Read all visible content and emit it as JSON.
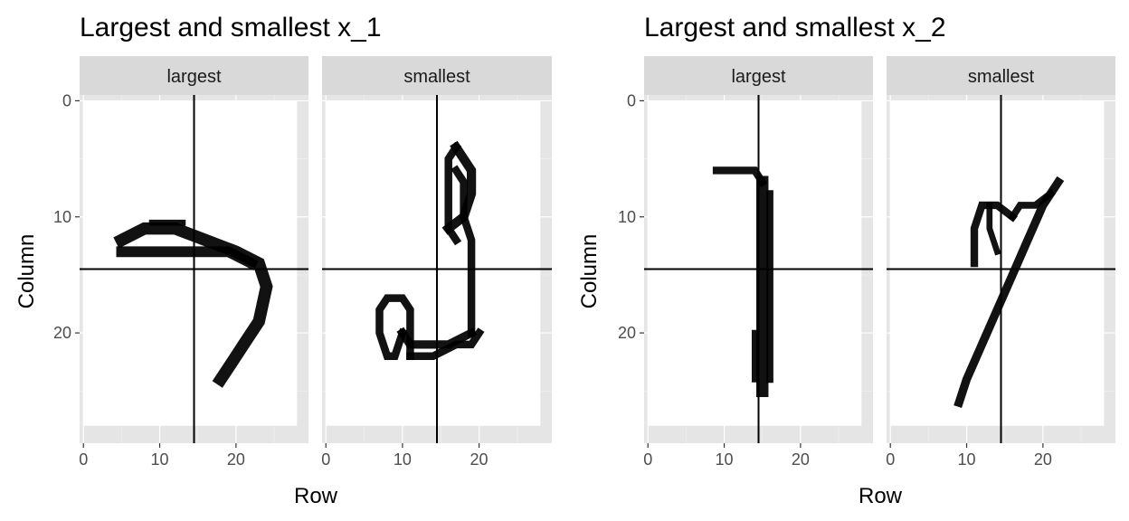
{
  "chart_data": [
    {
      "type": "heatmap",
      "title": "Largest and smallest x_1",
      "xlabel": "Row",
      "ylabel": "Column",
      "xlim": [
        -0.5,
        29.5
      ],
      "ylim": [
        -0.5,
        29.5
      ],
      "y_reversed": true,
      "x_ticks": [
        0,
        10,
        20
      ],
      "y_ticks": [
        0,
        10,
        20
      ],
      "colors": {
        "panel": "#e5e5e5",
        "strip": "#d9d9d9",
        "ink": "#000000",
        "background": "#ffffff"
      },
      "panels": [
        {
          "facet": "largest",
          "vline": 14.5,
          "hline": 14.5,
          "strokes": [
            {
              "points": [
                [
                  5,
                  12
                ],
                [
                  8,
                  11
                ],
                [
                  12,
                  11
                ],
                [
                  16,
                  12
                ],
                [
                  20,
                  13
                ],
                [
                  23,
                  14
                ],
                [
                  24,
                  16
                ],
                [
                  23,
                  19
                ],
                [
                  21,
                  21
                ],
                [
                  19,
                  23
                ],
                [
                  18,
                  24
                ]
              ],
              "width": 1.6
            },
            {
              "points": [
                [
                  5,
                  13
                ],
                [
                  9,
                  13
                ],
                [
                  14,
                  13
                ],
                [
                  19,
                  13
                ],
                [
                  22,
                  14
                ]
              ],
              "width": 1.4
            },
            {
              "points": [
                [
                  9,
                  10.5
                ],
                [
                  13,
                  10.5
                ]
              ],
              "width": 0.8
            }
          ]
        },
        {
          "facet": "smallest",
          "vline": 14.5,
          "hline": 14.5,
          "strokes": [
            {
              "points": [
                [
                  17,
                  4
                ],
                [
                  18,
                  5
                ],
                [
                  19,
                  6
                ],
                [
                  19,
                  8
                ],
                [
                  18,
                  10
                ],
                [
                  16,
                  11
                ]
              ],
              "width": 1.2
            },
            {
              "points": [
                [
                  17,
                  4
                ],
                [
                  16,
                  5
                ],
                [
                  16,
                  7
                ],
                [
                  16,
                  9
                ],
                [
                  16,
                  11
                ],
                [
                  17,
                  12
                ]
              ],
              "width": 1.0
            },
            {
              "points": [
                [
                  17,
                  6
                ],
                [
                  18,
                  7
                ],
                [
                  18,
                  10
                ],
                [
                  19,
                  12
                ],
                [
                  19,
                  15
                ],
                [
                  19,
                  18
                ],
                [
                  19,
                  20
                ]
              ],
              "width": 1.0
            },
            {
              "points": [
                [
                  19,
                  20
                ],
                [
                  16,
                  21
                ],
                [
                  13,
                  21
                ],
                [
                  11,
                  21
                ],
                [
                  10,
                  20
                ]
              ],
              "width": 1.1
            },
            {
              "points": [
                [
                  10,
                  20
                ],
                [
                  9,
                  22
                ],
                [
                  8,
                  22
                ],
                [
                  7,
                  20
                ],
                [
                  7,
                  18
                ],
                [
                  8,
                  17
                ],
                [
                  10,
                  17
                ],
                [
                  11,
                  18
                ],
                [
                  11,
                  20
                ],
                [
                  11,
                  22
                ]
              ],
              "width": 1.0
            },
            {
              "points": [
                [
                  11,
                  22
                ],
                [
                  14,
                  22
                ],
                [
                  17,
                  21
                ],
                [
                  19,
                  21
                ],
                [
                  20,
                  20
                ]
              ],
              "width": 1.0
            }
          ]
        }
      ]
    },
    {
      "type": "heatmap",
      "title": "Largest and smallest x_2",
      "xlabel": "Row",
      "ylabel": "Column",
      "xlim": [
        -0.5,
        29.5
      ],
      "ylim": [
        -0.5,
        29.5
      ],
      "y_reversed": true,
      "x_ticks": [
        0,
        10,
        20
      ],
      "y_ticks": [
        0,
        10,
        20
      ],
      "colors": {
        "panel": "#e5e5e5",
        "strip": "#d9d9d9",
        "ink": "#000000",
        "background": "#ffffff"
      },
      "panels": [
        {
          "facet": "largest",
          "vline": 14.5,
          "hline": 14.5,
          "strokes": [
            {
              "points": [
                [
                  9,
                  6
                ],
                [
                  12,
                  6
                ],
                [
                  14,
                  6
                ],
                [
                  15,
                  7
                ]
              ],
              "width": 1.0
            },
            {
              "points": [
                [
                  15,
                  7
                ],
                [
                  15,
                  12
                ],
                [
                  15,
                  17
                ],
                [
                  15,
                  22
                ],
                [
                  15,
                  25
                ]
              ],
              "width": 1.6
            },
            {
              "points": [
                [
                  16,
                  8
                ],
                [
                  16,
                  14
                ],
                [
                  16,
                  20
                ],
                [
                  16,
                  24
                ]
              ],
              "width": 0.9
            },
            {
              "points": [
                [
                  14,
                  20
                ],
                [
                  14,
                  24
                ]
              ],
              "width": 0.8
            }
          ]
        },
        {
          "facet": "smallest",
          "vline": 14.5,
          "hline": 14.5,
          "strokes": [
            {
              "points": [
                [
                  22,
                  7
                ],
                [
                  20,
                  9
                ],
                [
                  18,
                  12
                ],
                [
                  16,
                  15
                ],
                [
                  14,
                  18
                ],
                [
                  12,
                  21
                ],
                [
                  10,
                  24
                ],
                [
                  9,
                  26
                ]
              ],
              "width": 1.1
            },
            {
              "points": [
                [
                  11,
                  14
                ],
                [
                  11,
                  11
                ],
                [
                  12,
                  9
                ],
                [
                  14,
                  9
                ],
                [
                  16,
                  10
                ]
              ],
              "width": 1.0
            },
            {
              "points": [
                [
                  16,
                  10
                ],
                [
                  17,
                  9
                ],
                [
                  19,
                  9
                ],
                [
                  21,
                  8
                ]
              ],
              "width": 0.9
            },
            {
              "points": [
                [
                  13,
                  9
                ],
                [
                  13,
                  11
                ],
                [
                  14,
                  13
                ]
              ],
              "width": 0.8
            }
          ]
        }
      ]
    }
  ]
}
